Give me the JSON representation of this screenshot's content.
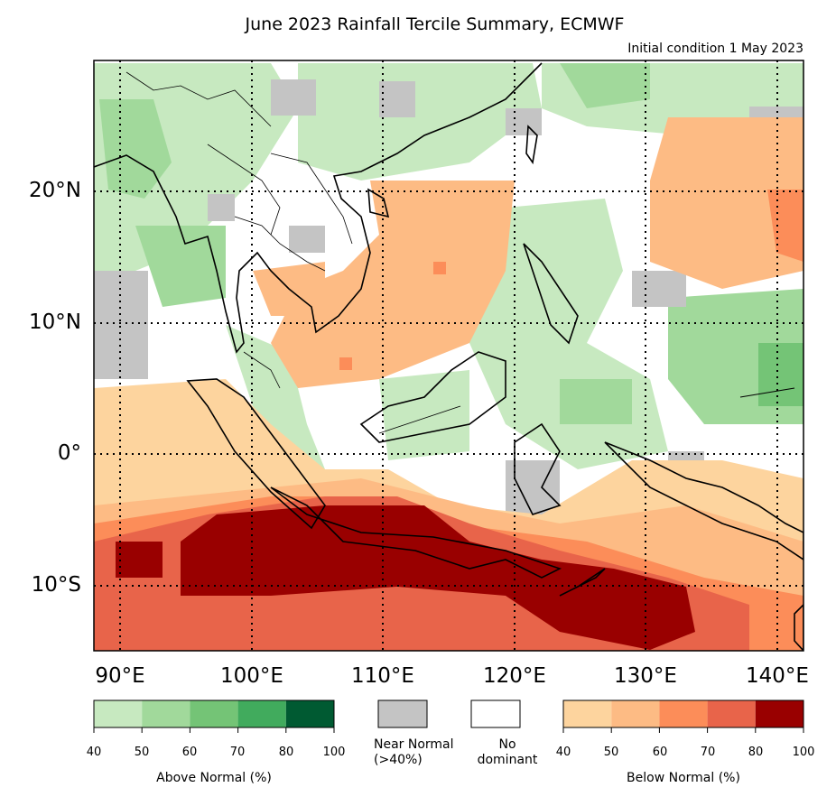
{
  "title": "June 2023 Rainfall Tercile Summary, ECMWF",
  "subtitle": "Initial condition 1 May 2023",
  "lat_labels": [
    "20°N",
    "10°N",
    "0°",
    "10°S"
  ],
  "lon_labels": [
    "90°E",
    "100°E",
    "110°E",
    "120°E",
    "130°E",
    "140°E"
  ],
  "legend": {
    "above": {
      "caption": "Above Normal (%)",
      "ticks": [
        "40",
        "50",
        "60",
        "70",
        "80",
        "100"
      ],
      "colors": [
        "#c7e9c0",
        "#a1d99b",
        "#74c476",
        "#41ab5d",
        "#005a32"
      ]
    },
    "near": {
      "label_line1": "Near Normal",
      "label_line2": "(>40%)",
      "color": "#c4c4c4"
    },
    "none": {
      "label_line1": "No",
      "label_line2": "dominant",
      "color": "#ffffff"
    },
    "below": {
      "caption": "Below Normal (%)",
      "ticks": [
        "40",
        "50",
        "60",
        "70",
        "80",
        "100"
      ],
      "colors": [
        "#fdd49e",
        "#fdbb84",
        "#fc8d59",
        "#e8644a",
        "#990000"
      ]
    }
  },
  "map": {
    "extent": {
      "lon_min": 88,
      "lon_max": 142,
      "lat_min": -15,
      "lat_max": 30
    },
    "gridlines": {
      "lons": [
        90,
        100,
        110,
        120,
        130,
        140
      ],
      "lats": [
        20,
        10,
        0,
        -10
      ],
      "style": "dotted"
    }
  }
}
